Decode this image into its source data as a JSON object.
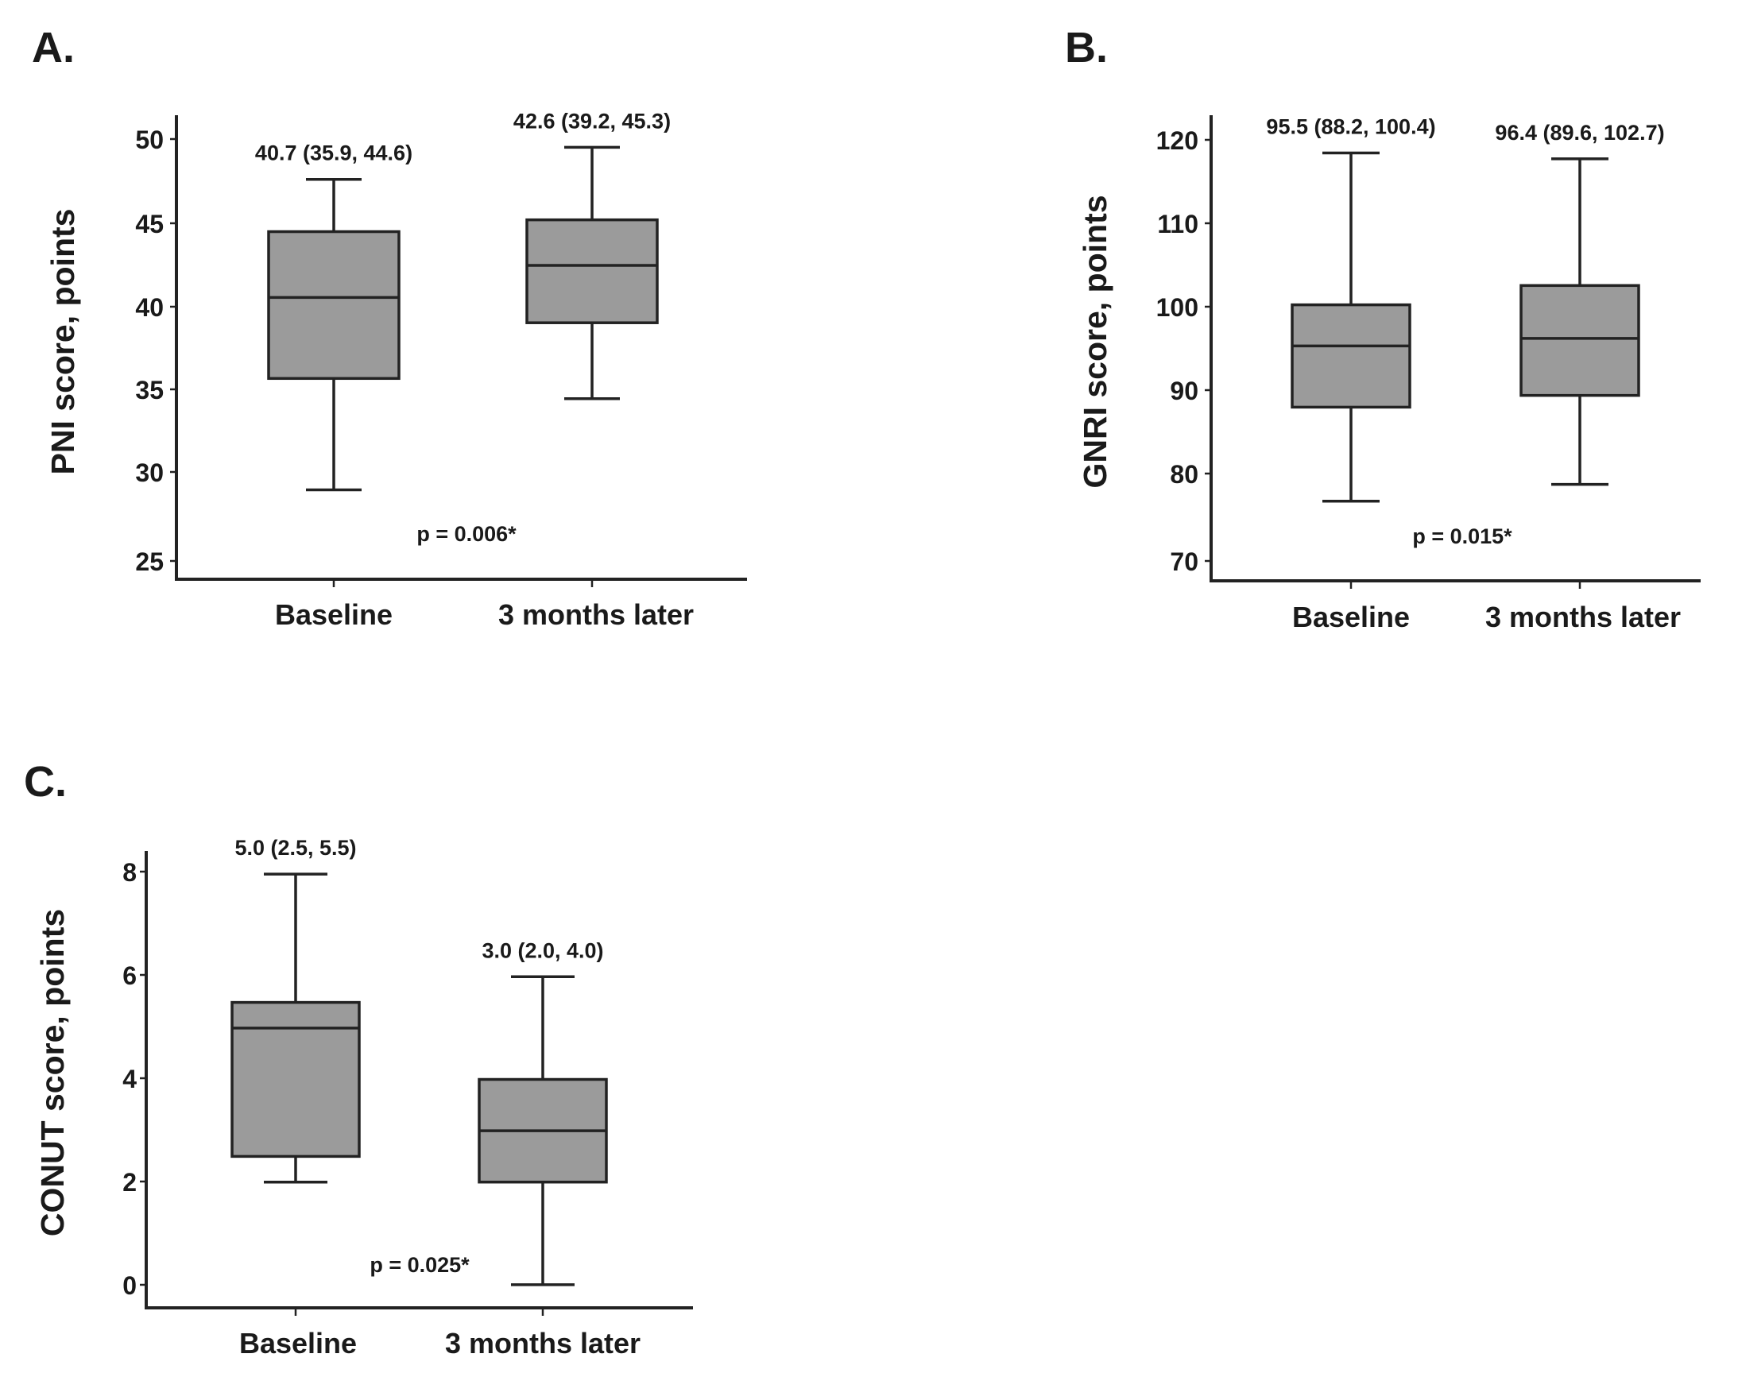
{
  "chart_data": [
    {
      "type": "box",
      "panel": "A.",
      "ylabel": "PNI score, points",
      "xlabel": "",
      "ylim": [
        24,
        51.5
      ],
      "yticks": [
        "25",
        "30",
        "35",
        "40",
        "45",
        "50"
      ],
      "categories": [
        "Baseline",
        "3 months later"
      ],
      "boxes": [
        {
          "min": 29.3,
          "q1": 35.9,
          "median": 40.7,
          "q3": 44.6,
          "max": 47.7,
          "annotation": "40.7 (35.9, 44.6)"
        },
        {
          "min": 34.7,
          "q1": 39.2,
          "median": 42.6,
          "q3": 45.3,
          "max": 49.6,
          "annotation": "42.6 (39.2, 45.3)"
        }
      ],
      "p_value": "p = 0.006*"
    },
    {
      "type": "box",
      "panel": "B.",
      "ylabel": "GNRI score, points",
      "xlabel": "",
      "ylim": [
        67.5,
        123
      ],
      "yticks": [
        "70",
        "80",
        "90",
        "100",
        "110",
        "120"
      ],
      "categories": [
        "Baseline",
        "3 months later"
      ],
      "boxes": [
        {
          "min": 77.0,
          "q1": 88.2,
          "median": 95.5,
          "q3": 100.4,
          "max": 118.5,
          "annotation": "95.5 (88.2, 100.4)"
        },
        {
          "min": 79.0,
          "q1": 89.6,
          "median": 96.4,
          "q3": 102.7,
          "max": 117.8,
          "annotation": "96.4 (89.6, 102.7)"
        }
      ],
      "p_value": "p = 0.015*"
    },
    {
      "type": "box",
      "panel": "C.",
      "ylabel": "CONUT score, points",
      "xlabel": "",
      "ylim": [
        -0.45,
        8.45
      ],
      "yticks": [
        "0",
        "2",
        "4",
        "6",
        "8"
      ],
      "categories": [
        "Baseline",
        "3 months later"
      ],
      "boxes": [
        {
          "min": 2.0,
          "q1": 2.5,
          "median": 5.0,
          "q3": 5.5,
          "max": 8.0,
          "annotation": "5.0 (2.5, 5.5)"
        },
        {
          "min": 0.0,
          "q1": 2.0,
          "median": 3.0,
          "q3": 4.0,
          "max": 6.0,
          "annotation": "3.0 (2.0, 4.0)"
        }
      ],
      "p_value": "p = 0.025*"
    }
  ]
}
